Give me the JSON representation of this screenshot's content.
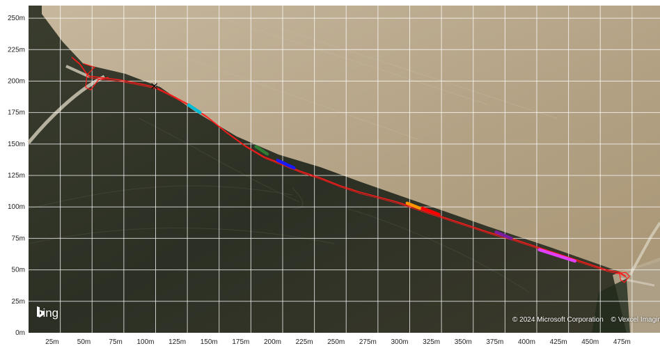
{
  "map": {
    "y_ticks": [
      {
        "label": "250m",
        "value": 250
      },
      {
        "label": "225m",
        "value": 225
      },
      {
        "label": "200m",
        "value": 200
      },
      {
        "label": "175m",
        "value": 175
      },
      {
        "label": "150m",
        "value": 150
      },
      {
        "label": "125m",
        "value": 125
      },
      {
        "label": "100m",
        "value": 100
      },
      {
        "label": "75m",
        "value": 75
      },
      {
        "label": "50m",
        "value": 50
      },
      {
        "label": "25m",
        "value": 25
      },
      {
        "label": "0m",
        "value": 0
      }
    ],
    "x_ticks": [
      {
        "label": "25m",
        "value": 25
      },
      {
        "label": "50m",
        "value": 50
      },
      {
        "label": "75m",
        "value": 75
      },
      {
        "label": "100m",
        "value": 100
      },
      {
        "label": "125m",
        "value": 125
      },
      {
        "label": "150m",
        "value": 150
      },
      {
        "label": "175m",
        "value": 175
      },
      {
        "label": "200m",
        "value": 200
      },
      {
        "label": "225m",
        "value": 225
      },
      {
        "label": "250m",
        "value": 250
      },
      {
        "label": "275m",
        "value": 275
      },
      {
        "label": "300m",
        "value": 300
      },
      {
        "label": "325m",
        "value": 325
      },
      {
        "label": "350m",
        "value": 350
      },
      {
        "label": "375m",
        "value": 375
      },
      {
        "label": "400m",
        "value": 400
      },
      {
        "label": "425m",
        "value": 425
      },
      {
        "label": "450m",
        "value": 450
      },
      {
        "label": "475m",
        "value": 475
      }
    ],
    "x_range": [
      0,
      497
    ],
    "y_range": [
      0,
      260
    ],
    "track_color": "#ff1a1a",
    "start_marker": {
      "x": 99,
      "y": 196
    },
    "track": [
      [
        34,
        219
      ],
      [
        40,
        214
      ],
      [
        47,
        204
      ],
      [
        55,
        203
      ],
      [
        63,
        202
      ],
      [
        72,
        201
      ],
      [
        82,
        199
      ],
      [
        92,
        197
      ],
      [
        100,
        195
      ],
      [
        112,
        189
      ],
      [
        125,
        182
      ],
      [
        140,
        172
      ],
      [
        155,
        160
      ],
      [
        170,
        149
      ],
      [
        185,
        140
      ],
      [
        200,
        134
      ],
      [
        215,
        128
      ],
      [
        230,
        123
      ],
      [
        245,
        117
      ],
      [
        260,
        112
      ],
      [
        275,
        108
      ],
      [
        290,
        104
      ],
      [
        305,
        99
      ],
      [
        320,
        94
      ],
      [
        335,
        89
      ],
      [
        350,
        84
      ],
      [
        365,
        79
      ],
      [
        380,
        75
      ],
      [
        395,
        70
      ],
      [
        410,
        65
      ],
      [
        425,
        60
      ],
      [
        440,
        55
      ],
      [
        455,
        50
      ],
      [
        465,
        48
      ],
      [
        470,
        45
      ]
    ],
    "side_branch": [
      [
        43,
        214
      ],
      [
        52,
        211
      ],
      [
        46,
        205
      ],
      [
        45,
        195
      ],
      [
        49,
        193
      ],
      [
        55,
        201
      ],
      [
        63,
        203
      ]
    ],
    "loop_end": [
      [
        462,
        47
      ],
      [
        470,
        48
      ],
      [
        473,
        45
      ],
      [
        469,
        40
      ],
      [
        466,
        42
      ],
      [
        465,
        48
      ]
    ],
    "segments": [
      {
        "color": "#00bcd4",
        "from": [
          126,
          181
        ],
        "to": [
          135,
          175
        ]
      },
      {
        "color": "#2e7d32",
        "from": [
          179,
          148
        ],
        "to": [
          188,
          142
        ]
      },
      {
        "color": "#1a1aff",
        "from": [
          196,
          137
        ],
        "to": [
          209,
          131
        ]
      },
      {
        "color": "#ff9800",
        "from": [
          298,
          103
        ],
        "to": [
          308,
          99
        ]
      },
      {
        "color": "#ff0000",
        "from": [
          310,
          99
        ],
        "to": [
          323,
          94
        ]
      },
      {
        "color": "#7b1fa2",
        "from": [
          368,
          80
        ],
        "to": [
          380,
          75
        ]
      },
      {
        "color": "#e040fb",
        "from": [
          402,
          66
        ],
        "to": [
          430,
          57
        ]
      }
    ],
    "logo_text": "bing",
    "attribution": [
      "© 2024 Microsoft Corporation",
      "© Vexcel Imaging"
    ],
    "colors": {
      "field_light": "#b7a58a",
      "field_dark": "#2f3226",
      "grid": "#ffffff",
      "road": "#d9d2c2"
    }
  }
}
